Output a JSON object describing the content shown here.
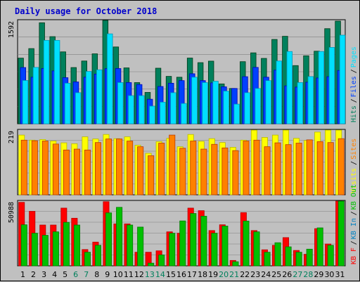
{
  "title": "Daily usage for October 2018",
  "colors": {
    "hits": "#00805c",
    "files": "#0040ff",
    "pages": "#00e0ff",
    "visits": "#ffff00",
    "sites": "#ff8000",
    "kbin": "#0080c0",
    "kbout": "#ff0000",
    "kbf": "#00c000",
    "weekend": "#00805c",
    "weekday": "#000000",
    "plot_bg": "#c0c0c0"
  },
  "chart_data": [
    {
      "type": "bar",
      "panel": "top",
      "ymax_label": "1592",
      "ymax": 1592,
      "legend": [
        {
          "text": "Hits",
          "color_key": "hits"
        },
        {
          "text": "Files",
          "color_key": "files"
        },
        {
          "text": "Pages",
          "color_key": "pages"
        }
      ],
      "categories": [
        "1",
        "2",
        "3",
        "4",
        "5",
        "6",
        "7",
        "8",
        "9",
        "10",
        "11",
        "12",
        "13",
        "14",
        "15",
        "16",
        "17",
        "18",
        "19",
        "20",
        "21",
        "22",
        "23",
        "24",
        "25",
        "26",
        "27",
        "28",
        "29",
        "30",
        "31"
      ],
      "weekend_days": [
        6,
        7,
        13,
        14,
        20,
        21,
        27,
        28
      ],
      "series": [
        {
          "name": "Hits",
          "values": [
            1004,
            1150,
            1545,
            1333,
            1100,
            860,
            960,
            1070,
            1600,
            1175,
            855,
            630,
            480,
            850,
            725,
            712,
            1005,
            935,
            958,
            610,
            540,
            950,
            1085,
            1000,
            1290,
            1338,
            890,
            1040,
            1110,
            1455,
            1570
          ]
        },
        {
          "name": "Files",
          "values": [
            860,
            712,
            845,
            808,
            705,
            640,
            712,
            760,
            842,
            845,
            630,
            600,
            375,
            570,
            620,
            660,
            765,
            660,
            625,
            565,
            540,
            720,
            862,
            712,
            820,
            580,
            560,
            635,
            700,
            720,
            815
          ]
        },
        {
          "name": "Pages",
          "values": [
            662,
            862,
            1275,
            1275,
            620,
            475,
            800,
            825,
            1375,
            630,
            430,
            430,
            270,
            330,
            475,
            310,
            712,
            630,
            650,
            500,
            300,
            475,
            540,
            660,
            960,
            1105,
            630,
            722,
            1105,
            1168,
            1355
          ]
        }
      ]
    },
    {
      "type": "bar",
      "panel": "middle",
      "ymax_label": "219",
      "ymax": 219,
      "legend": [
        {
          "text": "Visits",
          "color_key": "visits"
        },
        {
          "text": "Sites",
          "color_key": "sites"
        }
      ],
      "categories": [
        "1",
        "2",
        "3",
        "4",
        "5",
        "6",
        "7",
        "8",
        "9",
        "10",
        "11",
        "12",
        "13",
        "14",
        "15",
        "16",
        "17",
        "18",
        "19",
        "20",
        "21",
        "22",
        "23",
        "24",
        "25",
        "26",
        "27",
        "28",
        "29",
        "30",
        "31"
      ],
      "series": [
        {
          "name": "Visits",
          "values": [
            200,
            183,
            185,
            180,
            174,
            171,
            194,
            187,
            202,
            188,
            194,
            166,
            139,
            178,
            189,
            161,
            202,
            179,
            188,
            175,
            159,
            183,
            221,
            192,
            200,
            217,
            189,
            182,
            210,
            220,
            221
          ]
        },
        {
          "name": "Sites",
          "values": [
            183,
            181,
            180,
            170,
            150,
            153,
            150,
            175,
            187,
            187,
            180,
            161,
            131,
            173,
            200,
            156,
            180,
            153,
            169,
            157,
            148,
            180,
            183,
            161,
            174,
            168,
            173,
            184,
            178,
            175,
            188
          ]
        }
      ]
    },
    {
      "type": "bar",
      "panel": "bottom",
      "ymax_label": "50988",
      "ymax": 50988,
      "legend": [
        {
          "text": "KB F",
          "color_key": "kbout"
        },
        {
          "text": "KB In",
          "color_key": "kbin"
        },
        {
          "text": "KB Out",
          "color_key": "kbf"
        }
      ],
      "categories": [
        "1",
        "2",
        "3",
        "4",
        "5",
        "6",
        "7",
        "8",
        "9",
        "10",
        "11",
        "12",
        "13",
        "14",
        "15",
        "16",
        "17",
        "18",
        "19",
        "20",
        "21",
        "22",
        "23",
        "24",
        "25",
        "26",
        "27",
        "28",
        "29",
        "30",
        "31"
      ],
      "series": [
        {
          "name": "KB F",
          "values": [
            49500,
            42500,
            31800,
            31800,
            45000,
            37100,
            12700,
            18500,
            50000,
            32700,
            32700,
            10600,
            10600,
            11700,
            26500,
            25400,
            45000,
            43000,
            27500,
            32000,
            4200,
            41500,
            27500,
            12500,
            16000,
            22000,
            12000,
            9000,
            29000,
            17000,
            51000
          ]
        },
        {
          "name": "KB Out",
          "values": [
            32000,
            25400,
            23800,
            26500,
            33900,
            31800,
            10600,
            16000,
            41300,
            45600,
            31800,
            30200,
            2100,
            8500,
            25400,
            35000,
            40800,
            38700,
            25400,
            31000,
            3200,
            34900,
            26500,
            10600,
            18000,
            14800,
            10600,
            13000,
            29600,
            16000,
            52000
          ]
        }
      ]
    }
  ]
}
